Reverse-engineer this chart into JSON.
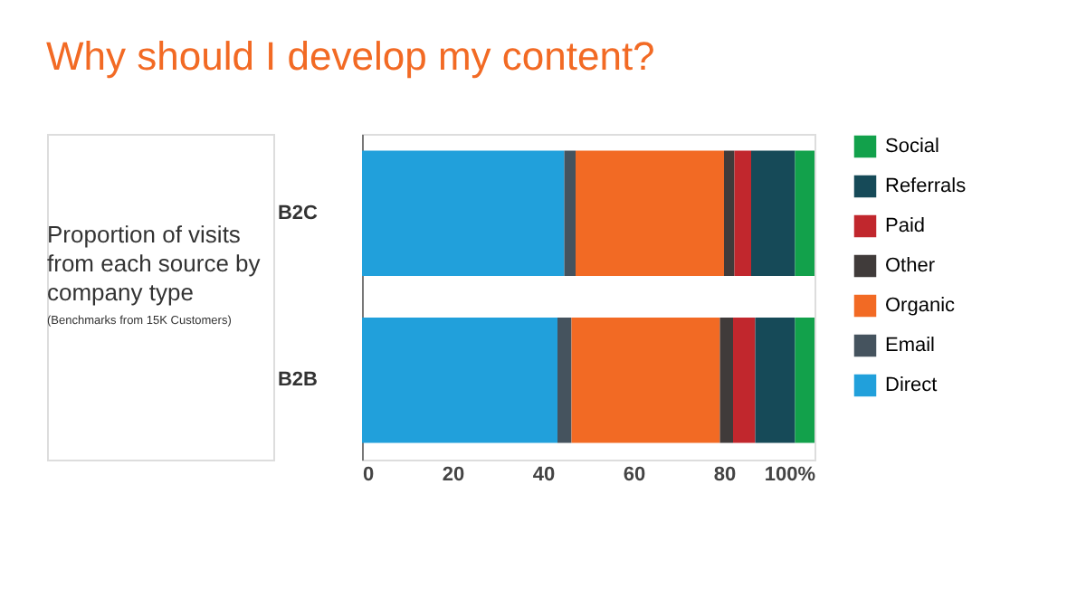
{
  "chart_data": {
    "type": "bar",
    "orientation": "horizontal",
    "stacked": true,
    "title": "Why should I develop my content?",
    "annotations": [
      "Proportion of visits from each source by company type",
      "(Benchmarks from 15K Customers)"
    ],
    "categories": [
      "B2C",
      "B2B"
    ],
    "series": [
      {
        "name": "Direct",
        "color": "#21a0db",
        "values": [
          44.7,
          43.2
        ]
      },
      {
        "name": "Email",
        "color": "#45535e",
        "values": [
          2.5,
          3.1
        ]
      },
      {
        "name": "Organic",
        "color": "#f26a24",
        "values": [
          32.8,
          32.8
        ]
      },
      {
        "name": "Other",
        "color": "#403b3a",
        "values": [
          2.3,
          2.9
        ]
      },
      {
        "name": "Paid",
        "color": "#c1272d",
        "values": [
          3.7,
          4.9
        ]
      },
      {
        "name": "Referrals",
        "color": "#164a58",
        "values": [
          9.7,
          8.8
        ]
      },
      {
        "name": "Social",
        "color": "#12a14b",
        "values": [
          4.3,
          4.3
        ]
      }
    ],
    "xlim": [
      0,
      100
    ],
    "xticks": [
      0,
      20,
      40,
      60,
      80,
      {
        "value": 100,
        "label": "100%"
      }
    ],
    "grid": false,
    "legend": "right"
  }
}
